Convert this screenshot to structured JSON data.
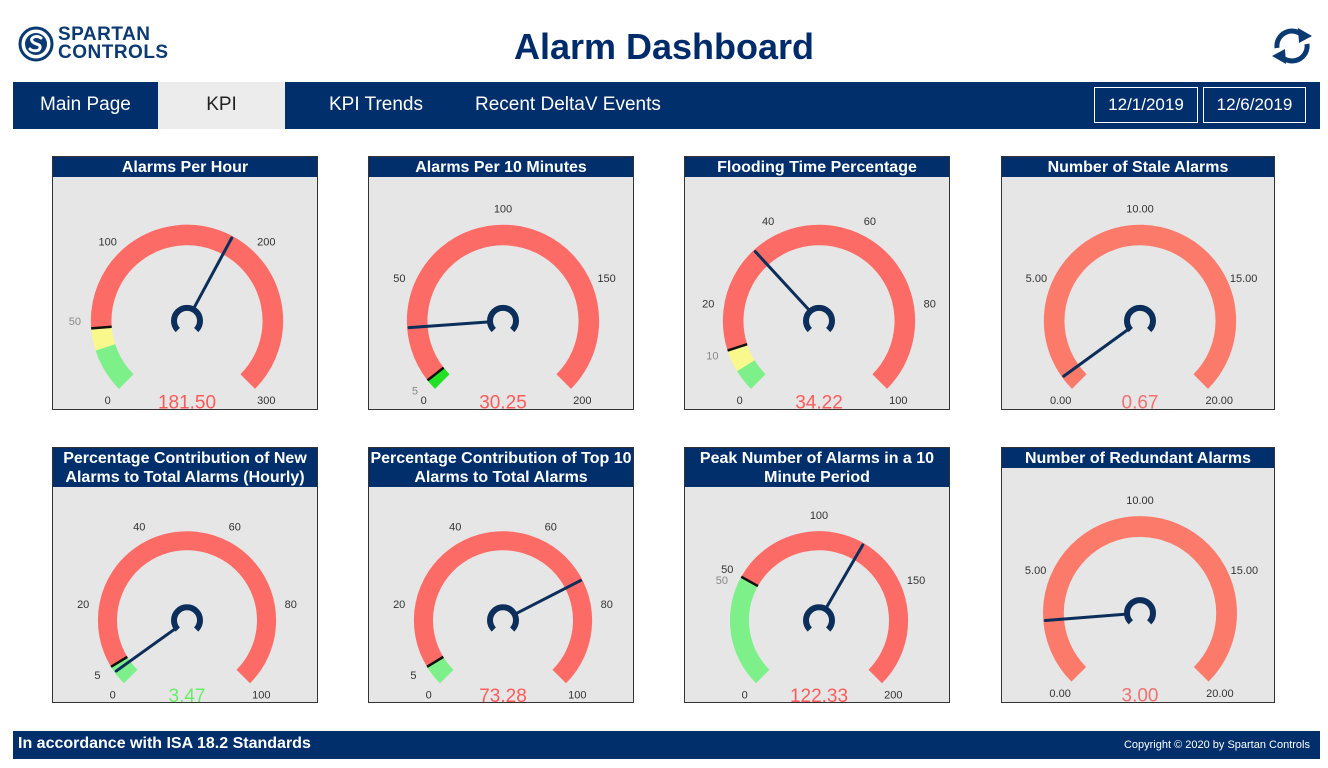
{
  "brand": {
    "line1": "SPARTAN",
    "line2": "CONTROLS"
  },
  "title": "Alarm Dashboard",
  "nav": {
    "items": [
      "Main Page",
      "KPI",
      "KPI Trends",
      "Recent DeltaV Events"
    ],
    "active": "KPI"
  },
  "dates": {
    "start": "12/1/2019",
    "end": "12/6/2019"
  },
  "gauges": [
    {
      "title": "Alarms Per Hour",
      "min": 0,
      "max": 300,
      "value": 181.5,
      "display": "181.50",
      "value_color": "#ff5a5a",
      "ticks": [
        {
          "v": 0,
          "label": "0"
        },
        {
          "v": 50,
          "label": "50",
          "muted": true
        },
        {
          "v": 100,
          "label": "100"
        },
        {
          "v": 200,
          "label": "200"
        },
        {
          "v": 300,
          "label": "300"
        }
      ],
      "bands": [
        {
          "from": 0,
          "to": 30,
          "color": "#7ef08a"
        },
        {
          "from": 30,
          "to": 45,
          "color": "#f8f88c"
        },
        {
          "from": 45,
          "to": 300,
          "color": "#fd6b66"
        }
      ],
      "marker": 45
    },
    {
      "title": "Alarms Per 10 Minutes",
      "min": 0,
      "max": 200,
      "value": 30.25,
      "display": "30.25",
      "value_color": "#ff5a5a",
      "ticks": [
        {
          "v": 0,
          "label": "0"
        },
        {
          "v": 5,
          "label": "5",
          "muted": true
        },
        {
          "v": 50,
          "label": "50"
        },
        {
          "v": 100,
          "label": "100"
        },
        {
          "v": 150,
          "label": "150"
        },
        {
          "v": 200,
          "label": "200"
        }
      ],
      "bands": [
        {
          "from": 0,
          "to": 5,
          "color": "#22e022"
        },
        {
          "from": 5,
          "to": 200,
          "color": "#fd6b66"
        }
      ],
      "marker": 5
    },
    {
      "title": "Flooding Time Percentage",
      "min": 0,
      "max": 100,
      "value": 34.22,
      "display": "34.22",
      "value_color": "#ff5a5a",
      "ticks": [
        {
          "v": 0,
          "label": "0"
        },
        {
          "v": 10,
          "label": "10",
          "muted": true
        },
        {
          "v": 20,
          "label": "20"
        },
        {
          "v": 40,
          "label": "40"
        },
        {
          "v": 60,
          "label": "60"
        },
        {
          "v": 80,
          "label": "80"
        },
        {
          "v": 100,
          "label": "100"
        }
      ],
      "bands": [
        {
          "from": 0,
          "to": 5,
          "color": "#7ef08a"
        },
        {
          "from": 5,
          "to": 10,
          "color": "#f8f88c"
        },
        {
          "from": 10,
          "to": 100,
          "color": "#fd6b66"
        }
      ],
      "marker": 10
    },
    {
      "title": "Number of Stale Alarms",
      "min": 0,
      "max": 20,
      "value": 0.67,
      "display": "0.67",
      "value_color": "#f27070",
      "ticks": [
        {
          "v": 0,
          "label": "0.00"
        },
        {
          "v": 5,
          "label": "5.00"
        },
        {
          "v": 10,
          "label": "10.00"
        },
        {
          "v": 15,
          "label": "15.00"
        },
        {
          "v": 20,
          "label": "20.00"
        }
      ],
      "bands": [
        {
          "from": 0,
          "to": 20,
          "color": "#fc7a6a"
        }
      ],
      "marker": null
    },
    {
      "title": "Percentage Contribution of New Alarms to Total Alarms (Hourly)",
      "min": 0,
      "max": 100,
      "value": 3.47,
      "display": "3.47",
      "value_color": "#66ee66",
      "ticks": [
        {
          "v": 0,
          "label": "0"
        },
        {
          "v": 5,
          "label": "5"
        },
        {
          "v": 20,
          "label": "20"
        },
        {
          "v": 40,
          "label": "40"
        },
        {
          "v": 60,
          "label": "60"
        },
        {
          "v": 80,
          "label": "80"
        },
        {
          "v": 100,
          "label": "100"
        }
      ],
      "bands": [
        {
          "from": 0,
          "to": 5,
          "color": "#7ef08a"
        },
        {
          "from": 5,
          "to": 100,
          "color": "#fd6b66"
        }
      ],
      "marker": 5
    },
    {
      "title": "Percentage Contribution of Top 10 Alarms to Total Alarms",
      "min": 0,
      "max": 100,
      "value": 73.28,
      "display": "73.28",
      "value_color": "#ff5a5a",
      "ticks": [
        {
          "v": 0,
          "label": "0"
        },
        {
          "v": 5,
          "label": "5"
        },
        {
          "v": 20,
          "label": "20"
        },
        {
          "v": 40,
          "label": "40"
        },
        {
          "v": 60,
          "label": "60"
        },
        {
          "v": 80,
          "label": "80"
        },
        {
          "v": 100,
          "label": "100"
        }
      ],
      "bands": [
        {
          "from": 0,
          "to": 5,
          "color": "#7ef08a"
        },
        {
          "from": 5,
          "to": 100,
          "color": "#fd6b66"
        }
      ],
      "marker": 5
    },
    {
      "title": "Peak Number of Alarms in a 10 Minute Period",
      "min": 0,
      "max": 200,
      "value": 122.33,
      "display": "122.33",
      "value_color": "#ff5a5a",
      "ticks": [
        {
          "v": 0,
          "label": "0"
        },
        {
          "v": 50,
          "label": "50",
          "muted": true
        },
        {
          "v": 100,
          "label": "100"
        },
        {
          "v": 150,
          "label": "150"
        },
        {
          "v": 200,
          "label": "200"
        }
      ],
      "extra_ticks": [
        {
          "v": 55,
          "label": "50"
        }
      ],
      "bands": [
        {
          "from": 0,
          "to": 55,
          "color": "#7ef08a"
        },
        {
          "from": 55,
          "to": 200,
          "color": "#fd6b66"
        }
      ],
      "marker": 55
    },
    {
      "title": "Number of Redundant Alarms",
      "min": 0,
      "max": 20,
      "value": 3.0,
      "display": "3.00",
      "value_color": "#f27070",
      "ticks": [
        {
          "v": 0,
          "label": "0.00"
        },
        {
          "v": 5,
          "label": "5.00"
        },
        {
          "v": 10,
          "label": "10.00"
        },
        {
          "v": 15,
          "label": "15.00"
        },
        {
          "v": 20,
          "label": "20.00"
        }
      ],
      "bands": [
        {
          "from": 0,
          "to": 20,
          "color": "#fc7a6a"
        }
      ],
      "marker": null
    }
  ],
  "footer": {
    "left": "In accordance with ISA 18.2 Standards",
    "right": "Copyright © 2020 by Spartan Controls"
  },
  "colors": {
    "navy": "#002f6c",
    "needle": "#0b2f5a",
    "card_bg": "#e6e6e6"
  },
  "icons": {
    "logo": "spartan-logo-icon",
    "refresh": "refresh-icon"
  }
}
